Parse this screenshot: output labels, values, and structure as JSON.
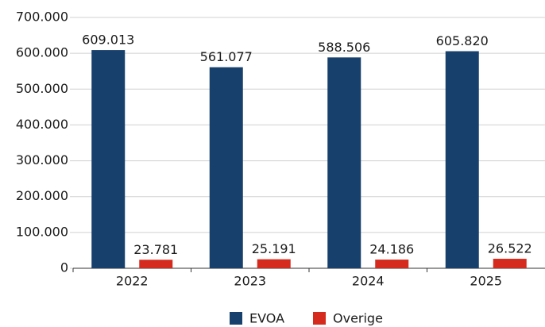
{
  "chart_data": {
    "type": "bar",
    "categories": [
      "2022",
      "2023",
      "2024",
      "2025"
    ],
    "series": [
      {
        "name": "EVOA",
        "color": "#17406d",
        "values": [
          609013,
          561077,
          588506,
          605820
        ],
        "value_labels": [
          "609.013",
          "561.077",
          "588.506",
          "605.820"
        ]
      },
      {
        "name": "Overige",
        "color": "#d52b1e",
        "values": [
          23781,
          25191,
          24186,
          26522
        ],
        "value_labels": [
          "23.781",
          "25.191",
          "24.186",
          "26.522"
        ]
      }
    ],
    "ylim": [
      0,
      700000
    ],
    "yticks": [
      0,
      {
        "value": 100000,
        "label": "100.000"
      },
      {
        "value": 200000,
        "label": "200.000"
      },
      {
        "value": 300000,
        "label": "300.000"
      },
      {
        "value": 400000,
        "label": "400.000"
      },
      {
        "value": 500000,
        "label": "500.000"
      },
      {
        "value": 600000,
        "label": "600.000"
      },
      {
        "value": 700000,
        "label": "700.000"
      }
    ],
    "grid": true,
    "legend": "bottom"
  }
}
